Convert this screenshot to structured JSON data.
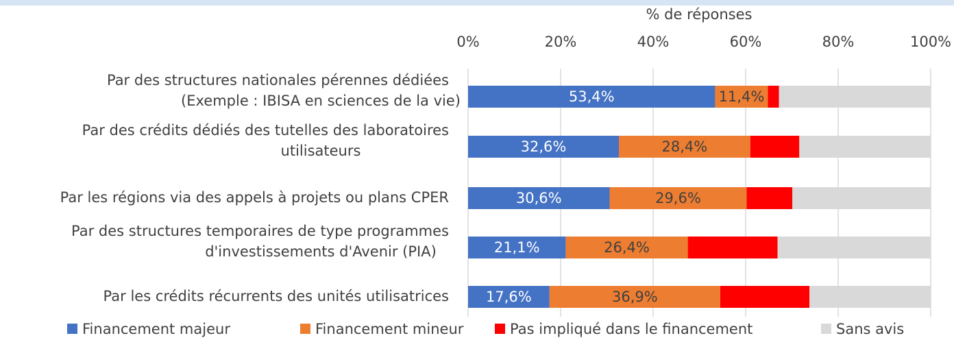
{
  "chart_data": {
    "type": "stacked-barh",
    "x_label": "% de réponses",
    "categories": [
      "Par des structures nationales pérennes dédiées\n(Exemple : IBISA en sciences de la vie)",
      "Par des crédits dédiés des tutelles des laboratoires\nutilisateurs",
      "Par les régions via des appels à projets ou plans CPER",
      "Par des structures temporaires  de type programmes\nd'investissements d'Avenir (PIA)",
      "Par les crédits récurrents des unités utilisatrices"
    ],
    "series": [
      {
        "name": "Financement majeur",
        "color": "#4472c4",
        "values": [
          53.4,
          32.6,
          30.6,
          21.1,
          17.6
        ],
        "value_labels": [
          "53,4%",
          "32,6%",
          "30,6%",
          "21,1%",
          "17,6%"
        ]
      },
      {
        "name": "Financement mineur",
        "color": "#ed7d31",
        "values": [
          11.4,
          28.4,
          29.6,
          26.4,
          36.9
        ],
        "value_labels": [
          "11,4%",
          "28,4%",
          "29,6%",
          "26,4%",
          "36,9%"
        ]
      },
      {
        "name": "Pas impliqué dans le financement",
        "color": "#ff0000",
        "values": [
          2.4,
          10.6,
          9.9,
          19.4,
          19.3
        ]
      },
      {
        "name": "Sans avis",
        "color": "#d9d9d9",
        "values": [
          32.8,
          28.4,
          29.9,
          33.1,
          26.2
        ]
      }
    ],
    "xlim": [
      0,
      100
    ],
    "xticks": [
      {
        "value": 0,
        "label": "0%"
      },
      {
        "value": 20,
        "label": "20%"
      },
      {
        "value": 40,
        "label": "40%"
      },
      {
        "value": 60,
        "label": "60%"
      },
      {
        "value": 80,
        "label": "80%"
      },
      {
        "value": 100,
        "label": "100%"
      }
    ],
    "grid": true
  }
}
